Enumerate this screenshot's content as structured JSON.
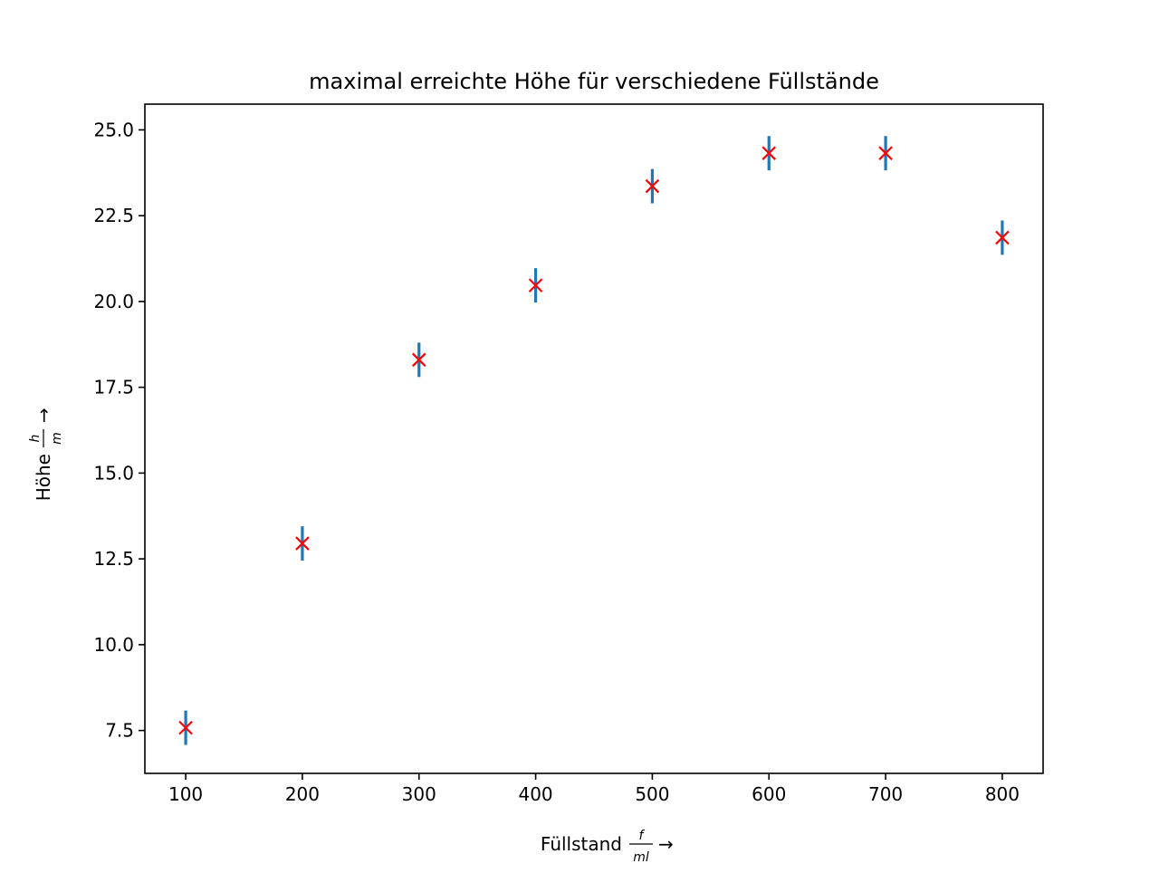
{
  "chart_data": {
    "type": "scatter",
    "title": "maximal erreichte Höhe für verschiedene Füllstände",
    "xlabel": {
      "text": "Füllstand",
      "fraction_numerator": "f",
      "fraction_denominator": "ml",
      "arrow": "→"
    },
    "ylabel": {
      "text": "Höhe",
      "fraction_numerator": "h",
      "fraction_denominator": "m",
      "arrow": "→"
    },
    "xlim": [
      65,
      835
    ],
    "ylim": [
      6.25,
      25.75
    ],
    "xticks": [
      100,
      200,
      300,
      400,
      500,
      600,
      700,
      800
    ],
    "xtick_labels": [
      "100",
      "200",
      "300",
      "400",
      "500",
      "600",
      "700",
      "800"
    ],
    "yticks": [
      7.5,
      10.0,
      12.5,
      15.0,
      17.5,
      20.0,
      22.5,
      25.0
    ],
    "ytick_labels": [
      "7.5",
      "10.0",
      "12.5",
      "15.0",
      "17.5",
      "20.0",
      "22.5",
      "25.0"
    ],
    "grid": false,
    "legend": "none",
    "series": [
      {
        "marker": "x",
        "marker_color": "#ff0000",
        "errorbar_color": "#1f77b4",
        "x": [
          100,
          200,
          300,
          400,
          500,
          600,
          700,
          800
        ],
        "y": [
          7.58,
          12.95,
          18.3,
          20.47,
          23.36,
          24.32,
          24.32,
          21.86
        ],
        "yerr": [
          0.5,
          0.5,
          0.5,
          0.5,
          0.5,
          0.5,
          0.5,
          0.5
        ]
      }
    ]
  }
}
